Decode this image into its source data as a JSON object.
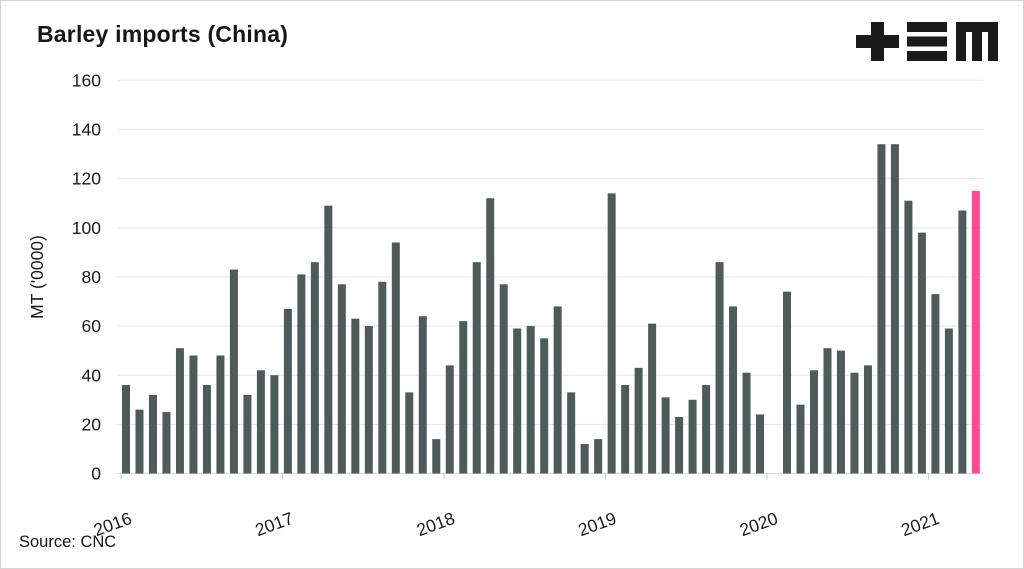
{
  "page": {
    "title": "Barley imports (China)",
    "logo_name": "plus-triple-bar-m-logo",
    "logo_color": "#1a1a1a"
  },
  "chart_data": {
    "type": "bar",
    "title": "Barley imports (China)",
    "ylabel": "MT ('0000)",
    "source": "Source: CNC",
    "ylim": [
      0,
      160
    ],
    "y_ticks": [
      0,
      20,
      40,
      60,
      80,
      100,
      120,
      140,
      160
    ],
    "x_tick_labels": [
      "2016",
      "2017",
      "2018",
      "2019",
      "2020",
      "2021"
    ],
    "grid": "horizontal",
    "legend": "none",
    "bar_color": "#4d5c5a",
    "highlight_color": "#fc4b92",
    "highlight_index": 63,
    "months": [
      "2016-01",
      "2016-02",
      "2016-03",
      "2016-04",
      "2016-05",
      "2016-06",
      "2016-07",
      "2016-08",
      "2016-09",
      "2016-10",
      "2016-11",
      "2016-12",
      "2017-01",
      "2017-02",
      "2017-03",
      "2017-04",
      "2017-05",
      "2017-06",
      "2017-07",
      "2017-08",
      "2017-09",
      "2017-10",
      "2017-11",
      "2017-12",
      "2018-01",
      "2018-02",
      "2018-03",
      "2018-04",
      "2018-05",
      "2018-06",
      "2018-07",
      "2018-08",
      "2018-09",
      "2018-10",
      "2018-11",
      "2018-12",
      "2019-01",
      "2019-02",
      "2019-03",
      "2019-04",
      "2019-05",
      "2019-06",
      "2019-07",
      "2019-08",
      "2019-09",
      "2019-10",
      "2019-11",
      "2019-12",
      "2020-01",
      "2020-02",
      "2020-03",
      "2020-04",
      "2020-05",
      "2020-06",
      "2020-07",
      "2020-08",
      "2020-09",
      "2020-10",
      "2020-11",
      "2020-12",
      "2021-01",
      "2021-02",
      "2021-03",
      "2021-04"
    ],
    "values": [
      36,
      26,
      32,
      25,
      51,
      48,
      36,
      48,
      83,
      32,
      42,
      40,
      67,
      81,
      86,
      109,
      77,
      63,
      60,
      78,
      94,
      33,
      64,
      14,
      44,
      62,
      86,
      112,
      77,
      59,
      60,
      55,
      68,
      33,
      12,
      14,
      114,
      36,
      43,
      61,
      31,
      23,
      30,
      36,
      86,
      68,
      41,
      24,
      0,
      74,
      28,
      42,
      51,
      50,
      41,
      44,
      134,
      134,
      111,
      98,
      73,
      59,
      107,
      115
    ]
  }
}
